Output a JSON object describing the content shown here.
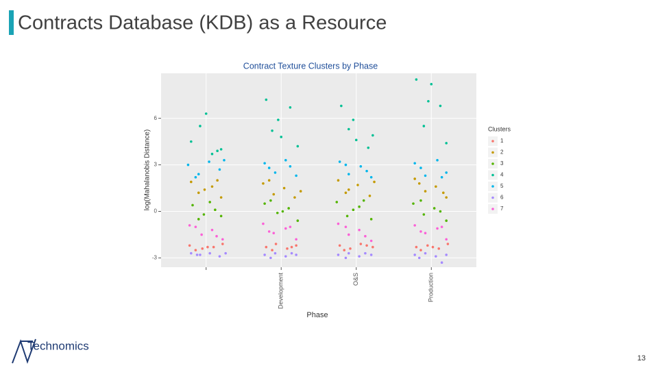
{
  "header": {
    "title": "Contracts Database (KDB) as a Resource"
  },
  "chart_data": {
    "type": "scatter",
    "title": "Contract Texture Clusters by Phase",
    "x_label": "Phase",
    "y_label": "log(Mahalanobis Distance)",
    "categories": [
      null,
      "Development",
      "O&S",
      "Production"
    ],
    "xlim": [
      0.4,
      4.6
    ],
    "xticks": [
      1,
      2,
      3,
      4
    ],
    "ylim": [
      -3.6,
      8.9
    ],
    "yticks": [
      -3,
      0,
      3,
      6
    ],
    "grid": true,
    "legend": "right",
    "legend_title": "Clusters",
    "series": [
      {
        "name": "1",
        "color": "#F8766D",
        "x": [
          0.78,
          0.95,
          1.1,
          1.22,
          0.86,
          1.02,
          1.8,
          1.93,
          2.08,
          2.2,
          1.88,
          2.14,
          2.78,
          2.92,
          3.06,
          3.22,
          2.84,
          3.14,
          3.8,
          3.95,
          4.1,
          4.22,
          3.86,
          4.02
        ],
        "y": [
          -2.2,
          -2.4,
          -2.3,
          -2.1,
          -2.5,
          -2.3,
          -2.3,
          -2.1,
          -2.4,
          -2.2,
          -2.5,
          -2.3,
          -2.2,
          -2.4,
          -2.1,
          -2.3,
          -2.5,
          -2.2,
          -2.3,
          -2.2,
          -2.4,
          -2.1,
          -2.5,
          -2.3
        ]
      },
      {
        "name": "2",
        "color": "#C49A00",
        "x": [
          0.8,
          0.9,
          1.08,
          1.2,
          0.98,
          1.15,
          1.76,
          1.9,
          2.04,
          2.18,
          1.84,
          2.26,
          2.76,
          2.9,
          3.02,
          3.18,
          2.86,
          3.24,
          3.78,
          3.92,
          4.06,
          4.2,
          3.84,
          4.16
        ],
        "y": [
          1.9,
          1.2,
          1.6,
          0.9,
          1.4,
          2.0,
          1.8,
          1.1,
          1.5,
          0.9,
          2.0,
          1.3,
          2.0,
          1.4,
          1.7,
          1.0,
          1.2,
          1.9,
          2.1,
          1.3,
          1.6,
          0.9,
          1.8,
          1.2
        ]
      },
      {
        "name": "3",
        "color": "#53B400",
        "x": [
          0.82,
          0.97,
          1.12,
          0.9,
          1.05,
          1.2,
          1.78,
          1.95,
          2.1,
          2.22,
          1.86,
          2.02,
          2.74,
          2.88,
          3.04,
          3.2,
          2.96,
          3.1,
          3.76,
          3.9,
          4.04,
          4.2,
          3.86,
          4.12
        ],
        "y": [
          0.4,
          -0.2,
          0.1,
          -0.5,
          0.6,
          -0.3,
          0.5,
          -0.1,
          0.2,
          -0.6,
          0.7,
          0.0,
          0.6,
          -0.3,
          0.3,
          -0.5,
          0.1,
          0.7,
          0.5,
          -0.2,
          0.2,
          -0.6,
          0.7,
          0.0
        ]
      },
      {
        "name": "4",
        "color": "#00C094",
        "x": [
          0.8,
          1.0,
          1.15,
          0.92,
          1.08,
          1.2,
          1.8,
          1.96,
          2.12,
          2.0,
          2.22,
          1.88,
          2.8,
          2.96,
          3.0,
          3.16,
          2.9,
          3.22,
          3.8,
          3.96,
          4.0,
          4.12,
          3.9,
          4.2
        ],
        "y": [
          4.5,
          6.3,
          3.9,
          5.5,
          3.7,
          4.0,
          7.2,
          5.9,
          6.7,
          4.8,
          4.2,
          5.2,
          6.8,
          5.9,
          4.6,
          4.1,
          5.3,
          4.9,
          8.5,
          7.1,
          8.2,
          6.8,
          5.5,
          4.4
        ]
      },
      {
        "name": "5",
        "color": "#00B6EB",
        "x": [
          0.76,
          0.9,
          1.04,
          1.18,
          0.86,
          1.24,
          1.78,
          1.92,
          2.06,
          2.2,
          1.84,
          2.12,
          2.78,
          2.9,
          3.06,
          3.2,
          2.86,
          3.14,
          3.78,
          3.92,
          4.08,
          4.2,
          3.86,
          4.14
        ],
        "y": [
          3.0,
          2.4,
          3.2,
          2.7,
          2.2,
          3.3,
          3.1,
          2.5,
          3.3,
          2.3,
          2.8,
          2.9,
          3.2,
          2.4,
          2.9,
          2.2,
          3.0,
          2.6,
          3.1,
          2.3,
          3.3,
          2.5,
          2.8,
          2.2
        ]
      },
      {
        "name": "6",
        "color": "#A58AFF",
        "x": [
          0.8,
          0.92,
          1.05,
          1.18,
          0.88,
          1.26,
          1.78,
          1.92,
          2.06,
          2.2,
          1.86,
          2.14,
          2.76,
          2.9,
          3.04,
          3.2,
          2.86,
          3.12,
          3.78,
          3.92,
          4.06,
          4.2,
          3.84,
          4.14
        ],
        "y": [
          -2.7,
          -2.8,
          -2.7,
          -2.9,
          -2.8,
          -2.7,
          -2.8,
          -2.7,
          -2.9,
          -2.8,
          -3.0,
          -2.7,
          -2.8,
          -2.7,
          -2.9,
          -2.8,
          -3.0,
          -2.7,
          -2.8,
          -2.7,
          -2.9,
          -2.8,
          -3.0,
          -3.3
        ]
      },
      {
        "name": "7",
        "color": "#FB61D7",
        "x": [
          0.78,
          0.94,
          1.08,
          1.22,
          0.86,
          1.14,
          1.76,
          1.9,
          2.06,
          2.2,
          1.84,
          2.12,
          2.76,
          2.9,
          3.04,
          3.2,
          2.86,
          3.12,
          3.78,
          3.92,
          4.08,
          4.2,
          3.86,
          4.14
        ],
        "y": [
          -0.9,
          -1.5,
          -1.2,
          -1.8,
          -1.0,
          -1.6,
          -0.8,
          -1.4,
          -1.1,
          -1.8,
          -1.3,
          -1.0,
          -0.8,
          -1.5,
          -1.2,
          -1.9,
          -1.0,
          -1.6,
          -0.9,
          -1.4,
          -1.1,
          -1.8,
          -1.3,
          -1.0
        ]
      }
    ]
  },
  "footer": {
    "logo": "Technomics",
    "page_number": "13"
  }
}
